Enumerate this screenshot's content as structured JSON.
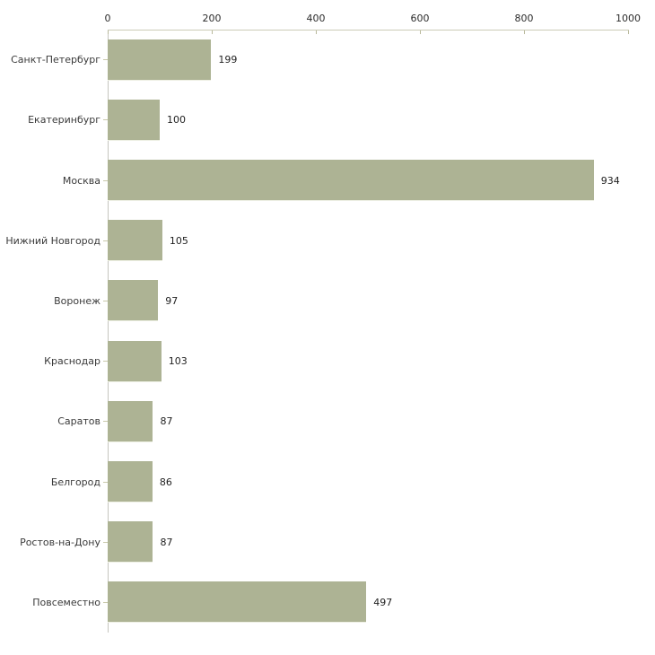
{
  "chart_data": {
    "type": "bar",
    "orientation": "horizontal",
    "title": "",
    "xlabel": "",
    "ylabel": "",
    "categories": [
      "Санкт-Петербург",
      "Екатеринбург",
      "Москва",
      "Нижний Новгород",
      "Воронеж",
      "Краснодар",
      "Саратов",
      "Белгород",
      "Ростов-на-Дону",
      "Повсеместно"
    ],
    "values": [
      199,
      100,
      934,
      105,
      97,
      103,
      87,
      86,
      87,
      497
    ],
    "value_labels": [
      "199",
      "100",
      "934",
      "105",
      "97",
      "103",
      "87",
      "86",
      "87",
      "497"
    ],
    "x_ticks": [
      0,
      200,
      400,
      600,
      800,
      1000
    ],
    "x_tick_labels": [
      "0",
      "200",
      "400",
      "600",
      "800",
      "1000"
    ],
    "xlim": [
      0,
      1000
    ],
    "grid": "off",
    "legend": "none",
    "axis_position": "top",
    "colors": {
      "bar_fill": "#adb394",
      "x_axis_line": "#cbcbb7",
      "y_axis_line": "#c6c6be",
      "tick_mark": "#b8b89a",
      "category_text": "#3a3a3a",
      "value_text": "#1f1f1f",
      "background": "#ffffff"
    }
  }
}
